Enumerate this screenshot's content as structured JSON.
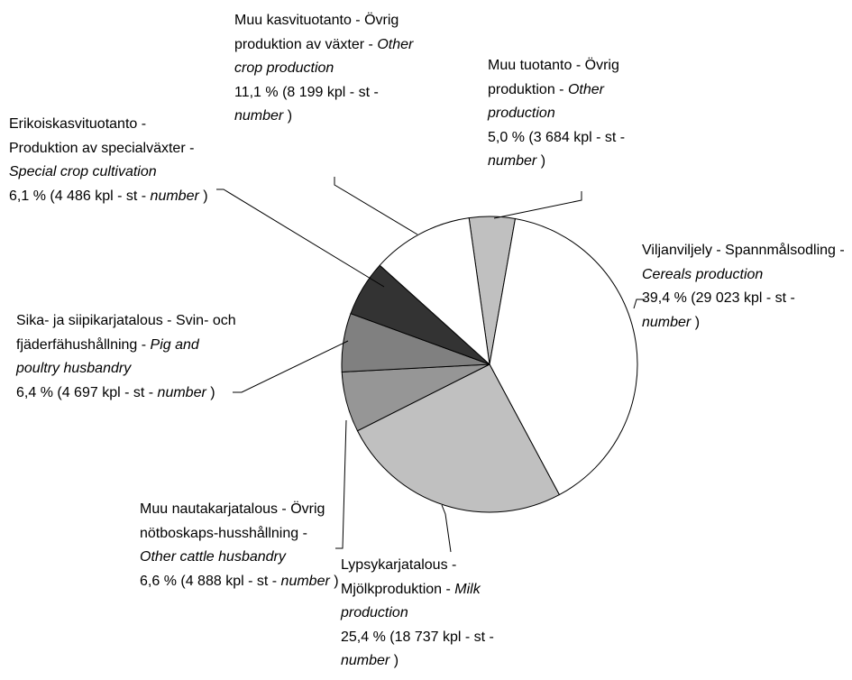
{
  "chart_data": {
    "type": "pie",
    "names_local": [
      "Muu tuotanto - Övrig produktion -",
      "Viljanviljely - Spannmålsodling -",
      "Lypsykarjatalous - Mjölkproduktion -",
      "Muu nautakarjatalous - Övrig nötboskaps-husshållning -",
      "Sika- ja siipikarjatalous - Svin- och fjäderfähushållning -",
      "Erikoiskasvituotanto - Produktion av specialväxter -",
      "Muu kasvituotanto - Övrig produktion av växter -"
    ],
    "categories": [
      "Other production",
      "Cereals production",
      "Milk production",
      "Other cattle husbandry",
      "Pig and poultry husbandry",
      "Special crop cultivation",
      "Other crop production"
    ],
    "values": [
      5.0,
      39.4,
      25.4,
      6.6,
      6.4,
      6.1,
      11.1
    ],
    "value_labels": [
      "5,0 %",
      "39,4 %",
      "25,4 %",
      "6,6 %",
      "6,4 %",
      "6,1 %",
      "11,1 %"
    ],
    "counts": [
      3684,
      29023,
      18737,
      4888,
      4697,
      4486,
      8199
    ],
    "count_labels": [
      "3 684",
      "29 023",
      "18 737",
      "4 888",
      "4 697",
      "4 486",
      "8 199"
    ],
    "brackets": [
      "(",
      ")"
    ],
    "unit": "kpl - st -",
    "unit_en": "number",
    "colors": [
      "#c0c0c0",
      "#ffffff",
      "#c0c0c0",
      "#969696",
      "#808080",
      "#333333",
      "#ffffff"
    ]
  }
}
